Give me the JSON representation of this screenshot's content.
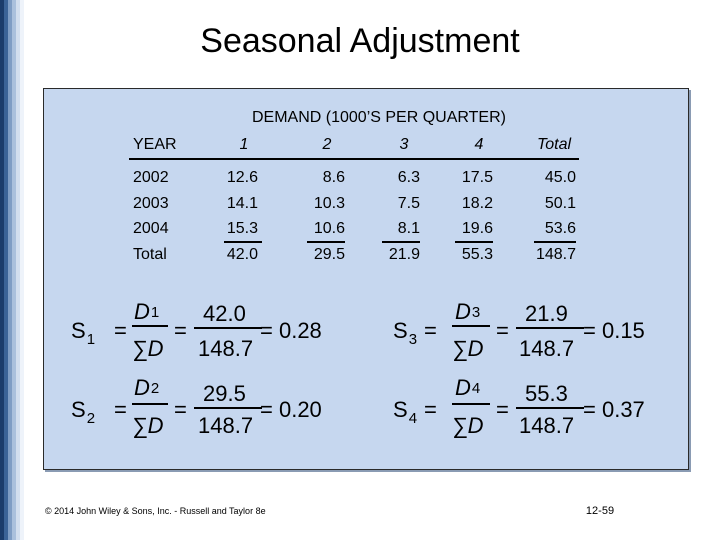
{
  "slide": {
    "title": "Seasonal Adjustment",
    "footer": "© 2014 John Wiley & Sons, Inc. - Russell and Taylor 8e",
    "page_number": "12-59"
  },
  "table": {
    "caption": "DEMAND (1000’S PER QUARTER)",
    "header": {
      "year": "YEAR",
      "q1": "1",
      "q2": "2",
      "q3": "3",
      "q4": "4",
      "total": "Total"
    },
    "rows": [
      {
        "year": "2002",
        "q1": "12.6",
        "q2": "8.6",
        "q3": "6.3",
        "q4": "17.5",
        "total": "45.0"
      },
      {
        "year": "2003",
        "q1": "14.1",
        "q2": "10.3",
        "q3": "7.5",
        "q4": "18.2",
        "total": "50.1"
      },
      {
        "year": "2004",
        "q1": "15.3",
        "q2": "10.6",
        "q3": "8.1",
        "q4": "19.6",
        "total": "53.6"
      },
      {
        "year": "Total",
        "q1": "42.0",
        "q2": "29.5",
        "q3": "21.9",
        "q4": "55.3",
        "total": "148.7"
      }
    ]
  },
  "formulas": {
    "s1": {
      "lhs": "S",
      "lhs_sub": "1",
      "num": "D",
      "num_sub": "1",
      "den": "∑D",
      "value_num": "42.0",
      "value_den": "148.7",
      "result": "0.28"
    },
    "s2": {
      "lhs": "S",
      "lhs_sub": "2",
      "num": "D",
      "num_sub": "2",
      "den": "∑D",
      "value_num": "29.5",
      "value_den": "148.7",
      "result": "0.20"
    },
    "s3": {
      "lhs": "S",
      "lhs_sub": "3",
      "num": "D",
      "num_sub": "3",
      "den": "∑D",
      "value_num": "21.9",
      "value_den": "148.7",
      "result": "0.15"
    },
    "s4": {
      "lhs": "S",
      "lhs_sub": "4",
      "num": "D",
      "num_sub": "4",
      "den": "∑D",
      "value_num": "55.3",
      "value_den": "148.7",
      "result": "0.37"
    },
    "equals": "=",
    "result_prefix": "= "
  }
}
